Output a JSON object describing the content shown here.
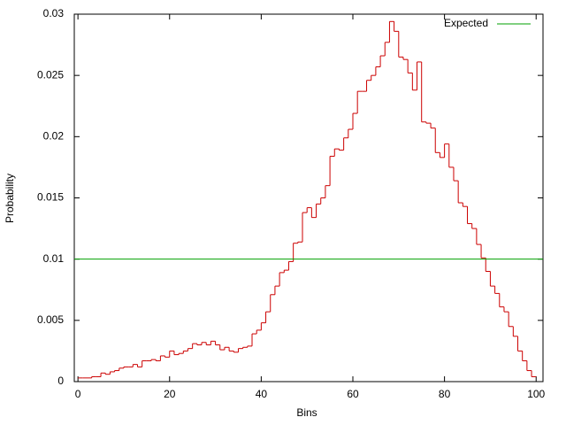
{
  "chart_data": {
    "type": "histogram",
    "xlabel": "Bins",
    "ylabel": "Probability",
    "bins": [
      0,
      1,
      2,
      3,
      4,
      5,
      6,
      7,
      8,
      9,
      10,
      11,
      12,
      13,
      14,
      15,
      16,
      17,
      18,
      19,
      20,
      21,
      22,
      23,
      24,
      25,
      26,
      27,
      28,
      29,
      30,
      31,
      32,
      33,
      34,
      35,
      36,
      37,
      38,
      39,
      40,
      41,
      42,
      43,
      44,
      45,
      46,
      47,
      48,
      49,
      50,
      51,
      52,
      53,
      54,
      55,
      56,
      57,
      58,
      59,
      60,
      61,
      62,
      63,
      64,
      65,
      66,
      67,
      68,
      69,
      70,
      71,
      72,
      73,
      74,
      75,
      76,
      77,
      78,
      79,
      80,
      81,
      82,
      83,
      84,
      85,
      86,
      87,
      88,
      89,
      90,
      91,
      92,
      93,
      94,
      95,
      96,
      97,
      98,
      99,
      100
    ],
    "values": [
      0.0003,
      0.0003,
      0.0003,
      0.0004,
      0.0004,
      0.0007,
      0.0006,
      0.0008,
      0.0009,
      0.0011,
      0.0012,
      0.0012,
      0.0014,
      0.0012,
      0.0017,
      0.0017,
      0.0018,
      0.0017,
      0.0021,
      0.002,
      0.0025,
      0.0022,
      0.0023,
      0.0025,
      0.0027,
      0.0031,
      0.003,
      0.0032,
      0.003,
      0.0033,
      0.003,
      0.0026,
      0.0028,
      0.0025,
      0.0024,
      0.0027,
      0.0028,
      0.0029,
      0.0039,
      0.0042,
      0.0048,
      0.0057,
      0.0071,
      0.0078,
      0.0089,
      0.0091,
      0.0098,
      0.0113,
      0.0114,
      0.0138,
      0.0142,
      0.0134,
      0.0145,
      0.015,
      0.016,
      0.0184,
      0.019,
      0.0189,
      0.0199,
      0.0206,
      0.0219,
      0.0237,
      0.0237,
      0.0246,
      0.025,
      0.0257,
      0.0266,
      0.0277,
      0.0294,
      0.0286,
      0.0265,
      0.0263,
      0.0252,
      0.0238,
      0.0261,
      0.0212,
      0.0211,
      0.0207,
      0.0187,
      0.0183,
      0.0194,
      0.0175,
      0.0164,
      0.0146,
      0.0143,
      0.0129,
      0.0125,
      0.0112,
      0.0101,
      0.009,
      0.0078,
      0.0072,
      0.0061,
      0.0057,
      0.0045,
      0.0037,
      0.0025,
      0.0017,
      0.0009,
      0.0004
    ],
    "color": "#cc0000",
    "expected": {
      "name": "Expected",
      "value": 0.01,
      "color": "#00a000"
    },
    "legend": "top-right",
    "xlim": [
      -0.8,
      101.5
    ],
    "xticks": [
      0,
      20,
      40,
      60,
      80,
      100
    ],
    "ylim": [
      0,
      0.03
    ],
    "yticks": [
      0,
      0.005,
      0.01,
      0.015,
      0.02,
      0.025,
      0.03
    ]
  }
}
